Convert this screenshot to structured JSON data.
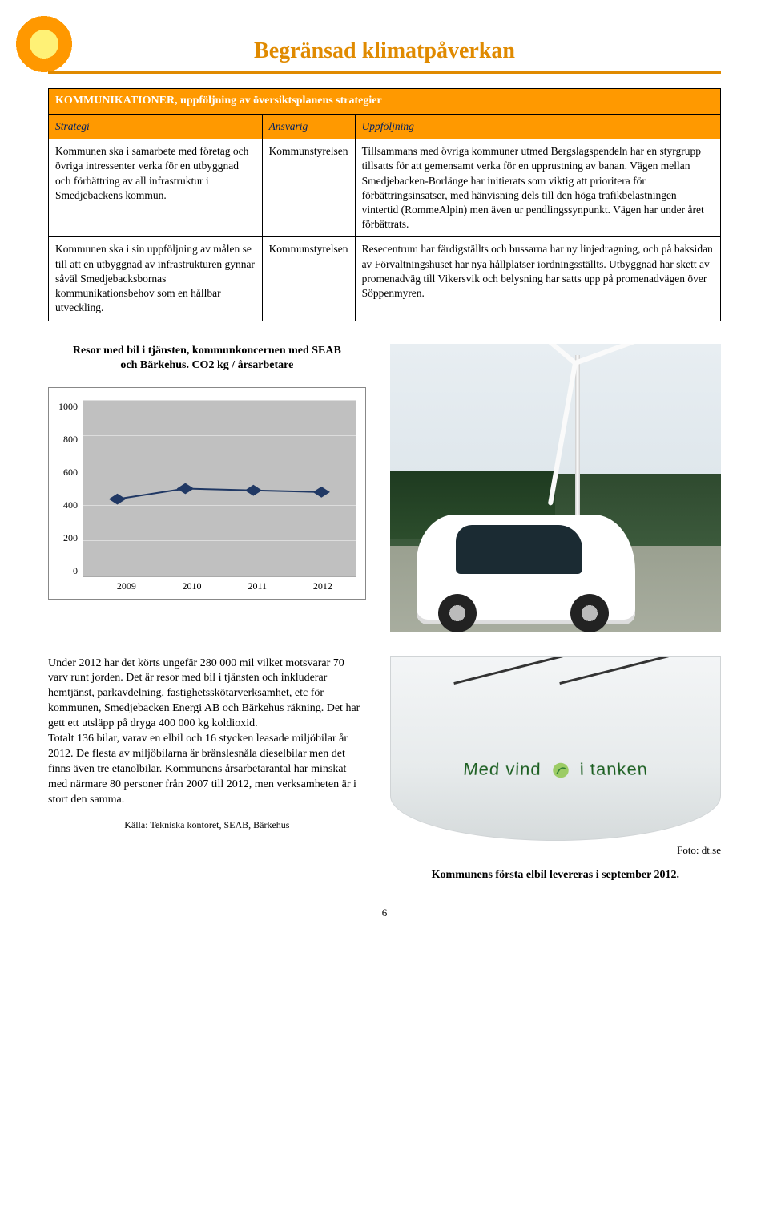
{
  "header": {
    "title": "Begränsad klimatpåverkan",
    "accent_color": "#e08a00"
  },
  "table": {
    "title": "KOMMUNIKATIONER, uppföljning av översiktsplanens strategier",
    "columns": {
      "strategy": "Strategi",
      "responsible": "Ansvarig",
      "followup": "Uppföljning"
    },
    "rows": [
      {
        "strategy": "Kommunen ska i samarbete med företag och övriga intressenter verka för en utbyggnad och förbättring av all infrastruktur i Smedjebackens kommun.",
        "responsible": "Kommunstyrelsen",
        "followup": "Tillsammans med övriga kommuner utmed Bergslagspendeln har en styrgrupp tillsatts för att gemensamt verka för en upprustning av banan. Vägen mellan Smedjebacken-Borlänge har initierats som viktig att prioritera för förbättringsinsatser, med hänvisning dels till den höga trafikbelastningen vintertid (RommeAlpin) men även ur pendlingssynpunkt. Vägen har under året förbättrats."
      },
      {
        "strategy": "Kommunen ska i sin uppföljning av målen se till att en utbyggnad av infrastrukturen gynnar såväl Smedjebacksbornas kommunikationsbehov som en hållbar utveckling.",
        "responsible": "Kommunstyrelsen",
        "followup": "Resecentrum har färdigställts och bussarna har ny linjedragning, och på baksidan av Förvaltningshuset har nya hållplatser iordningsställts. Utbyggnad har skett av promenadväg till Vikersvik och belysning har satts upp på promenadvägen över Söppenmyren."
      }
    ]
  },
  "chart": {
    "title": "Resor med bil i tjänsten, kommunkoncernen med SEAB och Bärkehus. CO2 kg / årsarbetare",
    "type": "line",
    "categories": [
      "2009",
      "2010",
      "2011",
      "2012"
    ],
    "values": [
      440,
      500,
      490,
      480
    ],
    "ylim": [
      0,
      1000
    ],
    "ytick_step": 200,
    "yticks": [
      "0",
      "200",
      "400",
      "600",
      "800",
      "1000"
    ],
    "line_color": "#203864",
    "marker_shape": "diamond",
    "marker_size": 7,
    "line_width": 2,
    "background_color": "#c0c0c0",
    "grid_color": "#dddddd",
    "axis_label_fontsize": 12,
    "title_fontsize": 14
  },
  "body_text": {
    "paragraph": "Under 2012 har det körts ungefär 280 000 mil vilket motsvarar 70 varv runt jorden. Det är resor med bil i tjänsten och inkluderar hemtjänst, parkavdelning, fastighetsskötarverksamhet, etc för kommunen, Smedjebacken Energi AB och Bärkehus räkning. Det har gett ett utsläpp på dryga 400 000 kg koldioxid.\nTotalt 136 bilar, varav en elbil och 16 stycken leasade miljöbilar år 2012. De flesta av miljöbilarna är bränslesnåla dieselbilar men det finns även tre etanolbilar. Kommunens årsarbetarantal har minskat med närmare 80 personer från 2007 till 2012, men verksamheten är i stort den samma.",
    "source": "Källa: Tekniska kontoret, SEAB, Bärkehus",
    "photo_credit": "Foto: dt.se",
    "caption": "Kommunens första elbil levereras i september 2012.",
    "hood_text": "Med vind i tanken"
  },
  "page_number": "6"
}
